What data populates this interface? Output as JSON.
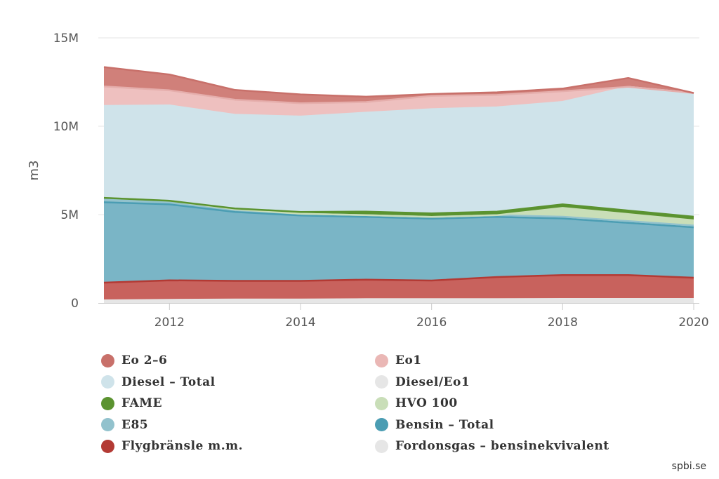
{
  "chart_data": {
    "type": "area",
    "stacking": "normal",
    "ylabel": "m3",
    "xlim": [
      2011,
      2020
    ],
    "ylim": [
      0,
      15000000
    ],
    "x_ticks": [
      {
        "value": 2012,
        "label": "2012"
      },
      {
        "value": 2014,
        "label": "2014"
      },
      {
        "value": 2016,
        "label": "2016"
      },
      {
        "value": 2018,
        "label": "2018"
      },
      {
        "value": 2020,
        "label": "2020"
      }
    ],
    "y_ticks": [
      {
        "value": 0,
        "label": "0"
      },
      {
        "value": 5000000,
        "label": "5M"
      },
      {
        "value": 10000000,
        "label": "10M"
      },
      {
        "value": 15000000,
        "label": "15M"
      }
    ],
    "grid": true,
    "legend_position": "bottom",
    "x": [
      2011,
      2012,
      2013,
      2014,
      2015,
      2016,
      2017,
      2018,
      2019,
      2020
    ],
    "series": [
      {
        "name": "Eo 2–6",
        "color": "#d0807a",
        "line_color": "#c8706a",
        "values": [
          1100000,
          900000,
          550000,
          500000,
          300000,
          100000,
          150000,
          150000,
          500000,
          0
        ]
      },
      {
        "name": "Eo1",
        "color": "#eec0bf",
        "line_color": "#e5aeac",
        "values": [
          1100000,
          850000,
          850000,
          750000,
          600000,
          750000,
          700000,
          600000,
          0,
          0
        ]
      },
      {
        "name": "Diesel – Total",
        "color": "#cfe3ea",
        "line_color": "#cfe3ea",
        "values": [
          5200000,
          5400000,
          5300000,
          5400000,
          5600000,
          5900000,
          5900000,
          5800000,
          7000000,
          7000000
        ]
      },
      {
        "name": "Diesel/Eo1",
        "color": "#e6e6e6",
        "line_color": "#e6e6e6",
        "values": [
          0,
          0,
          0,
          0,
          0,
          0,
          0,
          0,
          0,
          0
        ]
      },
      {
        "name": "FAME",
        "color": "#5b9330",
        "line_color": "#5b9330",
        "values": [
          0,
          0,
          50000,
          100000,
          200000,
          200000,
          200000,
          200000,
          200000,
          200000
        ]
      },
      {
        "name": "HVO 100",
        "color": "#c9deb8",
        "line_color": "#c9deb8",
        "values": [
          0,
          0,
          0,
          0,
          0,
          0,
          0,
          500000,
          400000,
          300000
        ]
      },
      {
        "name": "E85",
        "color": "#92c2cd",
        "line_color": "#92c2cd",
        "values": [
          250000,
          200000,
          150000,
          100000,
          100000,
          100000,
          100000,
          100000,
          100000,
          100000
        ]
      },
      {
        "name": "Bensin – Total",
        "color": "#7ab5c6",
        "line_color": "#4b9db3",
        "values": [
          4550000,
          4300000,
          3900000,
          3700000,
          3550000,
          3500000,
          3400000,
          3200000,
          2950000,
          2850000
        ]
      },
      {
        "name": "Flygbränsle m.m.",
        "color": "#c8625d",
        "line_color": "#b33a34",
        "values": [
          1000000,
          1100000,
          1050000,
          1050000,
          1100000,
          1050000,
          1250000,
          1350000,
          1350000,
          1200000
        ]
      },
      {
        "name": "Fordonsgas – bensinekvivalent",
        "color": "#e6e6e6",
        "line_color": "#e6e6e6",
        "values": [
          150000,
          180000,
          200000,
          200000,
          220000,
          220000,
          220000,
          230000,
          230000,
          230000
        ]
      }
    ]
  },
  "legend": [
    {
      "label": "Eo 2–6",
      "color": "#c8706a"
    },
    {
      "label": "Eo1",
      "color": "#eab7b5"
    },
    {
      "label": "Diesel – Total",
      "color": "#cfe3ea"
    },
    {
      "label": "Diesel/Eo1",
      "color": "#e6e6e6"
    },
    {
      "label": "FAME",
      "color": "#5b9330"
    },
    {
      "label": "HVO 100",
      "color": "#c9deb8"
    },
    {
      "label": "E85",
      "color": "#92c2cd"
    },
    {
      "label": "Bensin – Total",
      "color": "#4b9db3"
    },
    {
      "label": "Flygbränsle m.m.",
      "color": "#b33a34"
    },
    {
      "label": "Fordonsgas – bensinekvivalent",
      "color": "#e6e6e6"
    }
  ],
  "credit": "spbi.se"
}
